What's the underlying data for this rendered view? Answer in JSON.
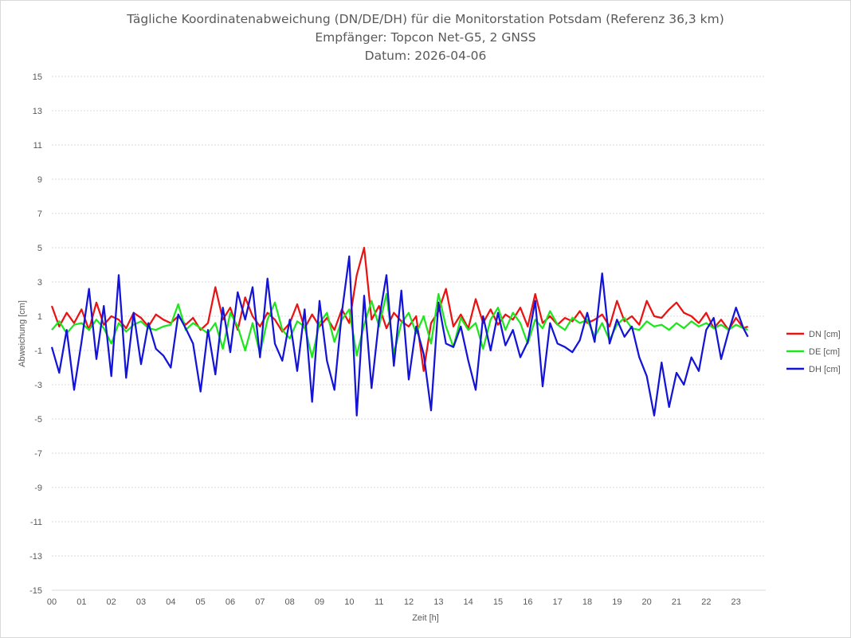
{
  "chart_data": {
    "type": "line",
    "title_lines": [
      "Tägliche Koordinatenabweichung (DN/DE/DH) für die Monitorstation Potsdam (Referenz 36,3 km)",
      "Empfänger: Topcon Net-G5, 2 GNSS",
      "Datum: 2026-04-06"
    ],
    "xlabel": "Zeit [h]",
    "ylabel": "Abweichung [cm]",
    "xlim": [
      0,
      24
    ],
    "ylim": [
      -15,
      15
    ],
    "x_ticks": [
      "00",
      "01",
      "02",
      "03",
      "04",
      "05",
      "06",
      "07",
      "08",
      "09",
      "10",
      "11",
      "12",
      "13",
      "14",
      "15",
      "16",
      "17",
      "18",
      "19",
      "20",
      "21",
      "22",
      "23"
    ],
    "y_ticks": [
      15,
      13,
      11,
      9,
      7,
      5,
      3,
      1,
      -1,
      -3,
      -5,
      -7,
      -9,
      -11,
      -13,
      -15
    ],
    "grid": "horizontal dashed",
    "legend_position": "right",
    "x_hours": [
      0.0,
      0.25,
      0.5,
      0.75,
      1.0,
      1.25,
      1.5,
      1.75,
      2.0,
      2.25,
      2.5,
      2.75,
      3.0,
      3.25,
      3.5,
      3.75,
      4.0,
      4.25,
      4.5,
      4.75,
      5.0,
      5.25,
      5.5,
      5.75,
      6.0,
      6.25,
      6.5,
      6.75,
      7.0,
      7.25,
      7.5,
      7.75,
      8.0,
      8.25,
      8.5,
      8.75,
      9.0,
      9.25,
      9.5,
      9.75,
      10.0,
      10.25,
      10.5,
      10.75,
      11.0,
      11.25,
      11.5,
      11.75,
      12.0,
      12.25,
      12.5,
      12.75,
      13.0,
      13.25,
      13.5,
      13.75,
      14.0,
      14.25,
      14.5,
      14.75,
      15.0,
      15.25,
      15.5,
      15.75,
      16.0,
      16.25,
      16.5,
      16.75,
      17.0,
      17.25,
      17.5,
      17.75,
      18.0,
      18.25,
      18.5,
      18.75,
      19.0,
      19.25,
      19.5,
      19.75,
      20.0,
      20.25,
      20.5,
      20.75,
      21.0,
      21.25,
      21.5,
      21.75,
      22.0,
      22.25,
      22.5,
      22.75,
      23.0,
      23.25,
      23.4
    ],
    "series": [
      {
        "name": "DN [cm]",
        "color": "#e81313",
        "values": [
          1.6,
          0.4,
          1.2,
          0.6,
          1.4,
          0.2,
          1.8,
          0.5,
          1.0,
          0.8,
          0.3,
          1.2,
          0.9,
          0.4,
          1.1,
          0.8,
          0.6,
          1.0,
          0.5,
          0.9,
          0.2,
          0.6,
          2.7,
          0.8,
          1.5,
          0.2,
          2.1,
          1.0,
          0.4,
          1.2,
          0.8,
          0.1,
          0.6,
          1.7,
          0.3,
          1.1,
          0.4,
          0.9,
          0.2,
          1.4,
          0.6,
          3.4,
          5.0,
          0.8,
          1.6,
          0.3,
          1.2,
          0.7,
          0.4,
          1.0,
          -2.2,
          0.6,
          1.3,
          2.6,
          0.4,
          1.1,
          0.3,
          2.0,
          0.6,
          1.4,
          0.5,
          1.1,
          0.8,
          1.5,
          0.4,
          2.3,
          0.6,
          1.0,
          0.5,
          0.9,
          0.7,
          1.3,
          0.6,
          0.8,
          1.1,
          0.4,
          1.9,
          0.7,
          1.0,
          0.5,
          1.9,
          1.0,
          0.9,
          1.4,
          1.8,
          1.2,
          1.0,
          0.6,
          1.2,
          0.3,
          0.8,
          0.2,
          0.9,
          0.3,
          0.4
        ]
      },
      {
        "name": "DE [cm]",
        "color": "#1ee61e",
        "values": [
          0.2,
          0.7,
          0.0,
          0.5,
          0.6,
          0.2,
          0.8,
          0.3,
          -0.6,
          0.6,
          0.1,
          0.5,
          0.7,
          0.3,
          0.2,
          0.4,
          0.5,
          1.7,
          0.2,
          0.6,
          0.3,
          0.0,
          0.6,
          -0.9,
          1.2,
          0.4,
          -1.0,
          0.6,
          -1.2,
          0.8,
          1.8,
          0.2,
          -0.3,
          0.7,
          0.4,
          -1.4,
          0.6,
          1.2,
          -0.5,
          0.8,
          1.4,
          -1.3,
          0.5,
          1.9,
          0.4,
          2.3,
          -1.2,
          0.6,
          1.2,
          0.0,
          1.0,
          -0.6,
          2.3,
          0.4,
          -0.8,
          0.9,
          0.2,
          0.6,
          -0.9,
          0.8,
          1.5,
          0.2,
          1.2,
          0.6,
          -0.6,
          0.8,
          0.3,
          1.3,
          0.5,
          0.2,
          0.9,
          0.6,
          0.8,
          -0.2,
          0.6,
          -0.4,
          0.5,
          0.9,
          0.3,
          0.2,
          0.7,
          0.4,
          0.5,
          0.2,
          0.6,
          0.3,
          0.7,
          0.4,
          0.6,
          0.3,
          0.5,
          0.2,
          0.5,
          0.3,
          0.2
        ]
      },
      {
        "name": "DH [cm]",
        "color": "#1414d7",
        "values": [
          -0.8,
          -2.3,
          0.2,
          -3.3,
          -0.5,
          2.6,
          -1.5,
          1.6,
          -2.5,
          3.4,
          -2.6,
          1.2,
          -1.8,
          0.6,
          -0.9,
          -1.3,
          -2.0,
          1.1,
          0.3,
          -0.6,
          -3.4,
          0.2,
          -2.4,
          1.5,
          -1.1,
          2.4,
          0.8,
          2.7,
          -1.4,
          3.2,
          -0.6,
          -1.6,
          0.8,
          -2.2,
          1.4,
          -4.0,
          1.9,
          -1.6,
          -3.3,
          1.2,
          4.5,
          -4.8,
          2.2,
          -3.2,
          0.8,
          3.4,
          -1.9,
          2.5,
          -2.7,
          0.4,
          -1.2,
          -4.5,
          1.8,
          -0.6,
          -0.8,
          0.4,
          -1.6,
          -3.3,
          1.0,
          -1.0,
          1.2,
          -0.7,
          0.2,
          -1.4,
          -0.5,
          1.9,
          -3.1,
          0.6,
          -0.6,
          -0.8,
          -1.1,
          -0.4,
          1.2,
          -0.5,
          3.5,
          -0.6,
          0.8,
          -0.2,
          0.4,
          -1.4,
          -2.5,
          -4.8,
          -1.7,
          -4.3,
          -2.3,
          -3.0,
          -1.4,
          -2.2,
          0.2,
          0.9,
          -1.5,
          0.1,
          1.5,
          0.3,
          -0.2
        ]
      }
    ]
  }
}
